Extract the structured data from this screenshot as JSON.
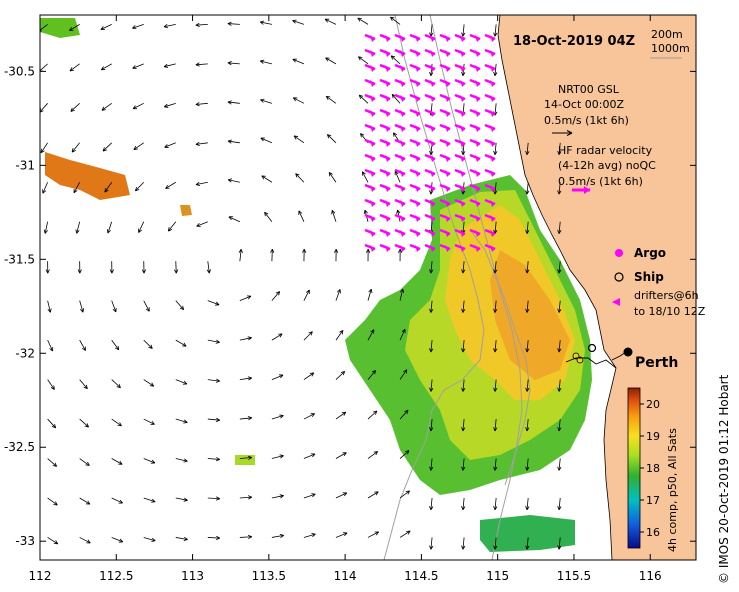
{
  "map": {
    "title": "18-Oct-2019 04Z",
    "credit": "© IMOS 20-Oct-2019 01:12 Hobart",
    "lon_range": [
      112,
      116.3
    ],
    "lat_range": [
      -30.2,
      -33.1
    ],
    "x_ticks": [
      "112",
      "112.5",
      "113",
      "113.5",
      "114",
      "114.5",
      "115",
      "115.5",
      "116"
    ],
    "y_ticks": [
      "-30.5",
      "-31",
      "-31.5",
      "-32",
      "-32.5",
      "-33"
    ],
    "isobath_labels": [
      "200m",
      "1000m"
    ],
    "legend": {
      "gsl_title": "NRT00 GSL",
      "gsl_date": "14-Oct 00:00Z",
      "gsl_scale": "0.5m/s (1kt 6h)",
      "hf_title": "HF radar velocity",
      "hf_sub": "(4-12h avg) noQC",
      "hf_scale": "0.5m/s (1kt 6h)",
      "argo": "Argo",
      "ship": "Ship",
      "drifters_1": "drifters@6h",
      "drifters_2": "to 18/10 12Z"
    },
    "city": "Perth",
    "colorbar": {
      "label": "4h comp, p50, All Sats",
      "range": [
        15.5,
        20.5
      ],
      "ticks": [
        "16",
        "17",
        "18",
        "19",
        "20"
      ]
    },
    "colors": {
      "land": "#f8c49a",
      "gsl_arrow": "#000000",
      "hf_arrow": "#ff00ff",
      "isobath": "#a0a0a0",
      "drifter": "#ff00ff"
    }
  }
}
